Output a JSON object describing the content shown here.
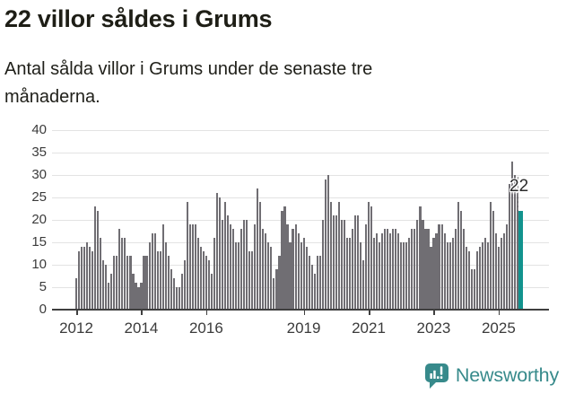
{
  "header": {
    "title": "22 villor såldes i Grums",
    "subtitle": "Antal sålda villor i Grums under de senaste tre månaderna."
  },
  "annotation": {
    "label": "22"
  },
  "footer": {
    "brand": "Newsworthy",
    "icon": "newsworthy-speech-bubble-bars-icon",
    "brand_color": "#378a8b"
  },
  "chart_data": {
    "type": "bar",
    "title": "22 villor såldes i Grums",
    "subtitle": "Antal sålda villor i Grums under de senaste tre månaderna.",
    "x_start": "2012-01",
    "frequency": "monthly",
    "ylabel": "",
    "xlabel": "",
    "ylim": [
      0,
      40
    ],
    "grid": true,
    "bar_color": "#706e73",
    "highlight_color": "#12938e",
    "axis_color": "#3f3f3f",
    "y_ticks": [
      0,
      5,
      10,
      15,
      20,
      25,
      30,
      35,
      40
    ],
    "x_ticks": [
      {
        "label": "2012",
        "month_index": 0
      },
      {
        "label": "2014",
        "month_index": 24
      },
      {
        "label": "2016",
        "month_index": 48
      },
      {
        "label": "2019",
        "month_index": 84
      },
      {
        "label": "2021",
        "month_index": 108
      },
      {
        "label": "2023",
        "month_index": 132
      },
      {
        "label": "2025",
        "month_index": 156
      }
    ],
    "values": [
      7,
      13,
      14,
      14,
      15,
      14,
      13,
      23,
      22,
      16,
      11,
      10,
      6,
      8,
      12,
      12,
      18,
      16,
      16,
      12,
      12,
      8,
      6,
      5,
      6,
      12,
      12,
      15,
      17,
      17,
      13,
      13,
      19,
      15,
      12,
      9,
      7,
      5,
      5,
      8,
      11,
      24,
      19,
      19,
      19,
      16,
      14,
      13,
      12,
      11,
      8,
      16,
      26,
      25,
      20,
      24,
      21,
      19,
      18,
      15,
      15,
      18,
      20,
      20,
      13,
      13,
      19,
      27,
      24,
      18,
      17,
      15,
      14,
      7,
      9,
      12,
      22,
      23,
      19,
      15,
      18,
      19,
      17,
      15,
      16,
      14,
      12,
      10,
      8,
      12,
      12,
      20,
      29,
      30,
      24,
      21,
      21,
      24,
      20,
      20,
      16,
      16,
      18,
      21,
      21,
      15,
      11,
      19,
      24,
      23,
      16,
      17,
      15,
      17,
      18,
      18,
      17,
      18,
      18,
      17,
      15,
      15,
      15,
      16,
      18,
      18,
      20,
      23,
      20,
      18,
      18,
      14,
      16,
      17,
      19,
      19,
      17,
      15,
      15,
      16,
      18,
      24,
      22,
      18,
      14,
      13,
      9,
      9,
      13,
      14,
      15,
      16,
      15,
      24,
      22,
      17,
      14,
      16,
      17,
      19,
      28,
      33,
      30,
      26,
      22
    ],
    "highlight_index": 164,
    "highlight_value": 22
  }
}
